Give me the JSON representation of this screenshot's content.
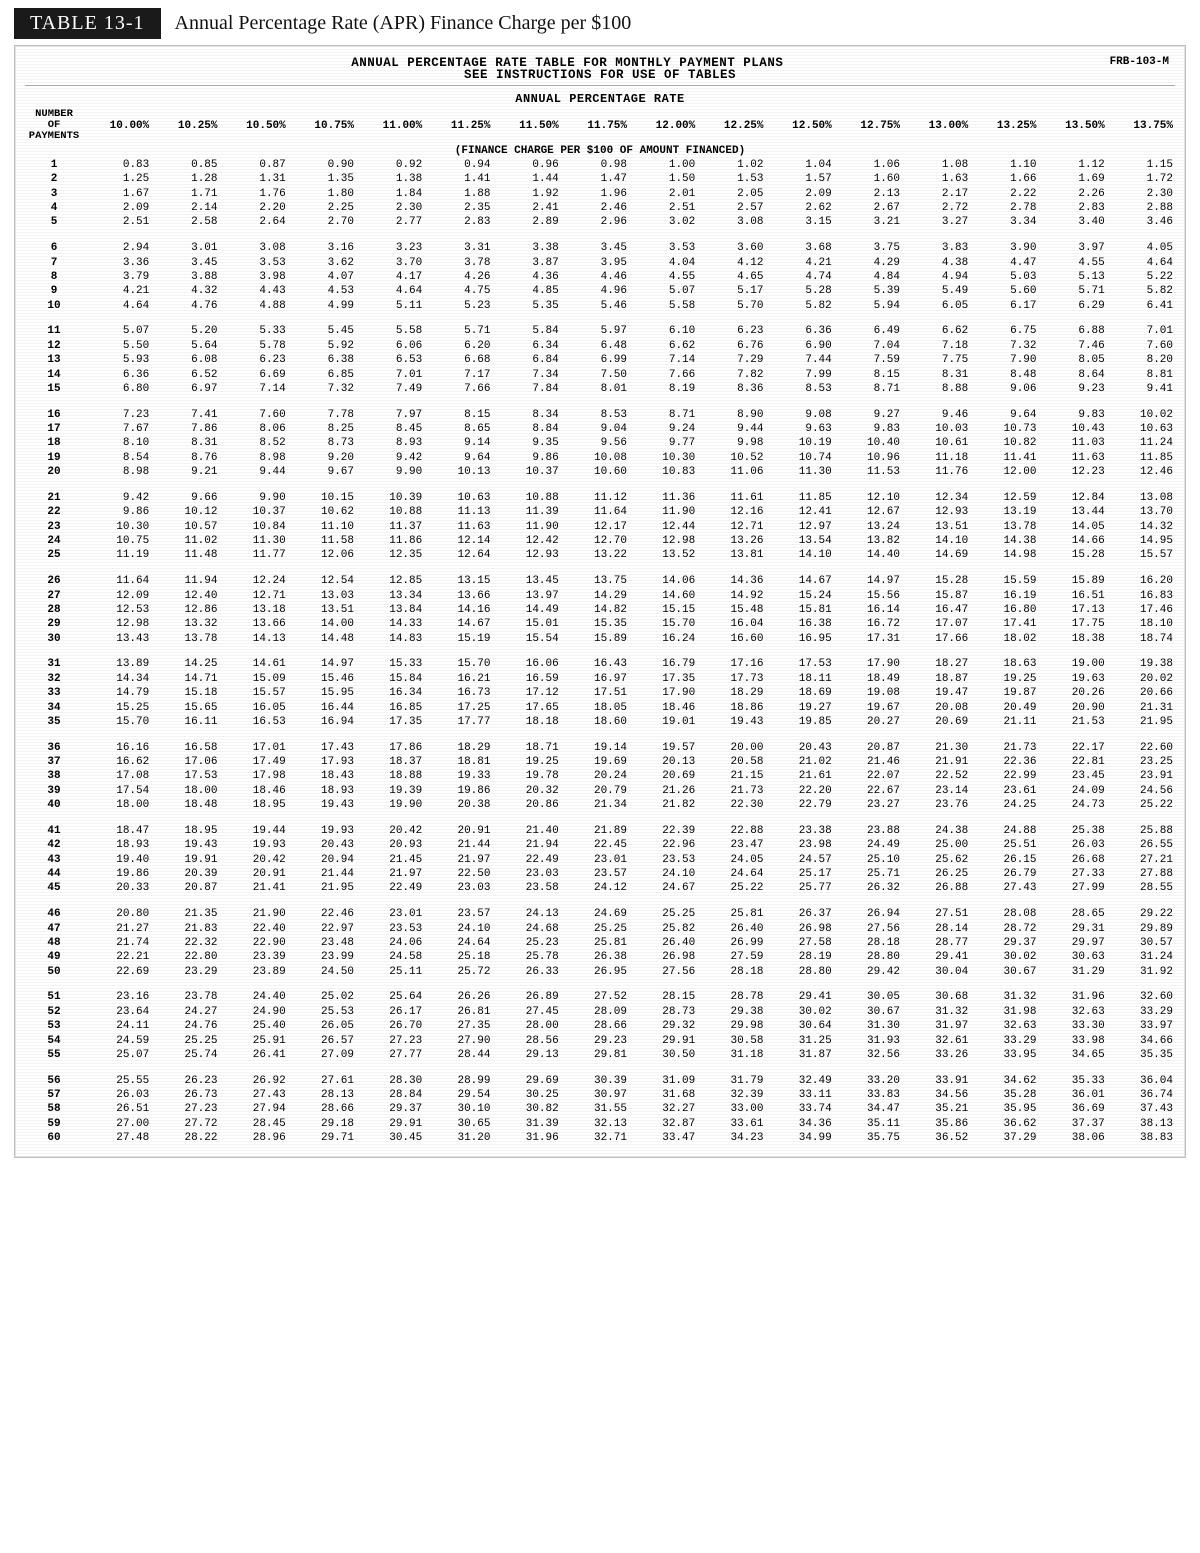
{
  "title_bar": {
    "tag": "TABLE 13-1",
    "text": "Annual Percentage Rate (APR) Finance Charge per $100"
  },
  "table_head": {
    "line1": "ANNUAL PERCENTAGE RATE TABLE FOR MONTHLY PAYMENT PLANS",
    "line2": "SEE INSTRUCTIONS FOR USE OF TABLES",
    "form_id": "FRB-103-M",
    "apr_title": "ANNUAL PERCENTAGE RATE",
    "row_header": "NUMBER\nOF\nPAYMENTS",
    "finance_note": "(FINANCE CHARGE PER $100 OF AMOUNT FINANCED)"
  },
  "rates": [
    "10.00%",
    "10.25%",
    "10.50%",
    "10.75%",
    "11.00%",
    "11.25%",
    "11.50%",
    "11.75%",
    "12.00%",
    "12.25%",
    "12.50%",
    "12.75%",
    "13.00%",
    "13.25%",
    "13.50%",
    "13.75%"
  ],
  "groups": 12,
  "colors": {
    "page_bg": "#ffffff",
    "ink": "#000000",
    "tag_bg": "#1a1a1a",
    "tag_fg": "#ffffff",
    "rule": "#aaaaaa"
  },
  "rows": [
    {
      "n": 1,
      "v": [
        "0.83",
        "0.85",
        "0.87",
        "0.90",
        "0.92",
        "0.94",
        "0.96",
        "0.98",
        "1.00",
        "1.02",
        "1.04",
        "1.06",
        "1.08",
        "1.10",
        "1.12",
        "1.15"
      ]
    },
    {
      "n": 2,
      "v": [
        "1.25",
        "1.28",
        "1.31",
        "1.35",
        "1.38",
        "1.41",
        "1.44",
        "1.47",
        "1.50",
        "1.53",
        "1.57",
        "1.60",
        "1.63",
        "1.66",
        "1.69",
        "1.72"
      ]
    },
    {
      "n": 3,
      "v": [
        "1.67",
        "1.71",
        "1.76",
        "1.80",
        "1.84",
        "1.88",
        "1.92",
        "1.96",
        "2.01",
        "2.05",
        "2.09",
        "2.13",
        "2.17",
        "2.22",
        "2.26",
        "2.30"
      ]
    },
    {
      "n": 4,
      "v": [
        "2.09",
        "2.14",
        "2.20",
        "2.25",
        "2.30",
        "2.35",
        "2.41",
        "2.46",
        "2.51",
        "2.57",
        "2.62",
        "2.67",
        "2.72",
        "2.78",
        "2.83",
        "2.88"
      ]
    },
    {
      "n": 5,
      "v": [
        "2.51",
        "2.58",
        "2.64",
        "2.70",
        "2.77",
        "2.83",
        "2.89",
        "2.96",
        "3.02",
        "3.08",
        "3.15",
        "3.21",
        "3.27",
        "3.34",
        "3.40",
        "3.46"
      ]
    },
    {
      "n": 6,
      "v": [
        "2.94",
        "3.01",
        "3.08",
        "3.16",
        "3.23",
        "3.31",
        "3.38",
        "3.45",
        "3.53",
        "3.60",
        "3.68",
        "3.75",
        "3.83",
        "3.90",
        "3.97",
        "4.05"
      ]
    },
    {
      "n": 7,
      "v": [
        "3.36",
        "3.45",
        "3.53",
        "3.62",
        "3.70",
        "3.78",
        "3.87",
        "3.95",
        "4.04",
        "4.12",
        "4.21",
        "4.29",
        "4.38",
        "4.47",
        "4.55",
        "4.64"
      ]
    },
    {
      "n": 8,
      "v": [
        "3.79",
        "3.88",
        "3.98",
        "4.07",
        "4.17",
        "4.26",
        "4.36",
        "4.46",
        "4.55",
        "4.65",
        "4.74",
        "4.84",
        "4.94",
        "5.03",
        "5.13",
        "5.22"
      ]
    },
    {
      "n": 9,
      "v": [
        "4.21",
        "4.32",
        "4.43",
        "4.53",
        "4.64",
        "4.75",
        "4.85",
        "4.96",
        "5.07",
        "5.17",
        "5.28",
        "5.39",
        "5.49",
        "5.60",
        "5.71",
        "5.82"
      ]
    },
    {
      "n": 10,
      "v": [
        "4.64",
        "4.76",
        "4.88",
        "4.99",
        "5.11",
        "5.23",
        "5.35",
        "5.46",
        "5.58",
        "5.70",
        "5.82",
        "5.94",
        "6.05",
        "6.17",
        "6.29",
        "6.41"
      ]
    },
    {
      "n": 11,
      "v": [
        "5.07",
        "5.20",
        "5.33",
        "5.45",
        "5.58",
        "5.71",
        "5.84",
        "5.97",
        "6.10",
        "6.23",
        "6.36",
        "6.49",
        "6.62",
        "6.75",
        "6.88",
        "7.01"
      ]
    },
    {
      "n": 12,
      "v": [
        "5.50",
        "5.64",
        "5.78",
        "5.92",
        "6.06",
        "6.20",
        "6.34",
        "6.48",
        "6.62",
        "6.76",
        "6.90",
        "7.04",
        "7.18",
        "7.32",
        "7.46",
        "7.60"
      ]
    },
    {
      "n": 13,
      "v": [
        "5.93",
        "6.08",
        "6.23",
        "6.38",
        "6.53",
        "6.68",
        "6.84",
        "6.99",
        "7.14",
        "7.29",
        "7.44",
        "7.59",
        "7.75",
        "7.90",
        "8.05",
        "8.20"
      ]
    },
    {
      "n": 14,
      "v": [
        "6.36",
        "6.52",
        "6.69",
        "6.85",
        "7.01",
        "7.17",
        "7.34",
        "7.50",
        "7.66",
        "7.82",
        "7.99",
        "8.15",
        "8.31",
        "8.48",
        "8.64",
        "8.81"
      ]
    },
    {
      "n": 15,
      "v": [
        "6.80",
        "6.97",
        "7.14",
        "7.32",
        "7.49",
        "7.66",
        "7.84",
        "8.01",
        "8.19",
        "8.36",
        "8.53",
        "8.71",
        "8.88",
        "9.06",
        "9.23",
        "9.41"
      ]
    },
    {
      "n": 16,
      "v": [
        "7.23",
        "7.41",
        "7.60",
        "7.78",
        "7.97",
        "8.15",
        "8.34",
        "8.53",
        "8.71",
        "8.90",
        "9.08",
        "9.27",
        "9.46",
        "9.64",
        "9.83",
        "10.02"
      ]
    },
    {
      "n": 17,
      "v": [
        "7.67",
        "7.86",
        "8.06",
        "8.25",
        "8.45",
        "8.65",
        "8.84",
        "9.04",
        "9.24",
        "9.44",
        "9.63",
        "9.83",
        "10.03",
        "10.73",
        "10.43",
        "10.63"
      ]
    },
    {
      "n": 18,
      "v": [
        "8.10",
        "8.31",
        "8.52",
        "8.73",
        "8.93",
        "9.14",
        "9.35",
        "9.56",
        "9.77",
        "9.98",
        "10.19",
        "10.40",
        "10.61",
        "10.82",
        "11.03",
        "11.24"
      ]
    },
    {
      "n": 19,
      "v": [
        "8.54",
        "8.76",
        "8.98",
        "9.20",
        "9.42",
        "9.64",
        "9.86",
        "10.08",
        "10.30",
        "10.52",
        "10.74",
        "10.96",
        "11.18",
        "11.41",
        "11.63",
        "11.85"
      ]
    },
    {
      "n": 20,
      "v": [
        "8.98",
        "9.21",
        "9.44",
        "9.67",
        "9.90",
        "10.13",
        "10.37",
        "10.60",
        "10.83",
        "11.06",
        "11.30",
        "11.53",
        "11.76",
        "12.00",
        "12.23",
        "12.46"
      ]
    },
    {
      "n": 21,
      "v": [
        "9.42",
        "9.66",
        "9.90",
        "10.15",
        "10.39",
        "10.63",
        "10.88",
        "11.12",
        "11.36",
        "11.61",
        "11.85",
        "12.10",
        "12.34",
        "12.59",
        "12.84",
        "13.08"
      ]
    },
    {
      "n": 22,
      "v": [
        "9.86",
        "10.12",
        "10.37",
        "10.62",
        "10.88",
        "11.13",
        "11.39",
        "11.64",
        "11.90",
        "12.16",
        "12.41",
        "12.67",
        "12.93",
        "13.19",
        "13.44",
        "13.70"
      ]
    },
    {
      "n": 23,
      "v": [
        "10.30",
        "10.57",
        "10.84",
        "11.10",
        "11.37",
        "11.63",
        "11.90",
        "12.17",
        "12.44",
        "12.71",
        "12.97",
        "13.24",
        "13.51",
        "13.78",
        "14.05",
        "14.32"
      ]
    },
    {
      "n": 24,
      "v": [
        "10.75",
        "11.02",
        "11.30",
        "11.58",
        "11.86",
        "12.14",
        "12.42",
        "12.70",
        "12.98",
        "13.26",
        "13.54",
        "13.82",
        "14.10",
        "14.38",
        "14.66",
        "14.95"
      ]
    },
    {
      "n": 25,
      "v": [
        "11.19",
        "11.48",
        "11.77",
        "12.06",
        "12.35",
        "12.64",
        "12.93",
        "13.22",
        "13.52",
        "13.81",
        "14.10",
        "14.40",
        "14.69",
        "14.98",
        "15.28",
        "15.57"
      ]
    },
    {
      "n": 26,
      "v": [
        "11.64",
        "11.94",
        "12.24",
        "12.54",
        "12.85",
        "13.15",
        "13.45",
        "13.75",
        "14.06",
        "14.36",
        "14.67",
        "14.97",
        "15.28",
        "15.59",
        "15.89",
        "16.20"
      ]
    },
    {
      "n": 27,
      "v": [
        "12.09",
        "12.40",
        "12.71",
        "13.03",
        "13.34",
        "13.66",
        "13.97",
        "14.29",
        "14.60",
        "14.92",
        "15.24",
        "15.56",
        "15.87",
        "16.19",
        "16.51",
        "16.83"
      ]
    },
    {
      "n": 28,
      "v": [
        "12.53",
        "12.86",
        "13.18",
        "13.51",
        "13.84",
        "14.16",
        "14.49",
        "14.82",
        "15.15",
        "15.48",
        "15.81",
        "16.14",
        "16.47",
        "16.80",
        "17.13",
        "17.46"
      ]
    },
    {
      "n": 29,
      "v": [
        "12.98",
        "13.32",
        "13.66",
        "14.00",
        "14.33",
        "14.67",
        "15.01",
        "15.35",
        "15.70",
        "16.04",
        "16.38",
        "16.72",
        "17.07",
        "17.41",
        "17.75",
        "18.10"
      ]
    },
    {
      "n": 30,
      "v": [
        "13.43",
        "13.78",
        "14.13",
        "14.48",
        "14.83",
        "15.19",
        "15.54",
        "15.89",
        "16.24",
        "16.60",
        "16.95",
        "17.31",
        "17.66",
        "18.02",
        "18.38",
        "18.74"
      ]
    },
    {
      "n": 31,
      "v": [
        "13.89",
        "14.25",
        "14.61",
        "14.97",
        "15.33",
        "15.70",
        "16.06",
        "16.43",
        "16.79",
        "17.16",
        "17.53",
        "17.90",
        "18.27",
        "18.63",
        "19.00",
        "19.38"
      ]
    },
    {
      "n": 32,
      "v": [
        "14.34",
        "14.71",
        "15.09",
        "15.46",
        "15.84",
        "16.21",
        "16.59",
        "16.97",
        "17.35",
        "17.73",
        "18.11",
        "18.49",
        "18.87",
        "19.25",
        "19.63",
        "20.02"
      ]
    },
    {
      "n": 33,
      "v": [
        "14.79",
        "15.18",
        "15.57",
        "15.95",
        "16.34",
        "16.73",
        "17.12",
        "17.51",
        "17.90",
        "18.29",
        "18.69",
        "19.08",
        "19.47",
        "19.87",
        "20.26",
        "20.66"
      ]
    },
    {
      "n": 34,
      "v": [
        "15.25",
        "15.65",
        "16.05",
        "16.44",
        "16.85",
        "17.25",
        "17.65",
        "18.05",
        "18.46",
        "18.86",
        "19.27",
        "19.67",
        "20.08",
        "20.49",
        "20.90",
        "21.31"
      ]
    },
    {
      "n": 35,
      "v": [
        "15.70",
        "16.11",
        "16.53",
        "16.94",
        "17.35",
        "17.77",
        "18.18",
        "18.60",
        "19.01",
        "19.43",
        "19.85",
        "20.27",
        "20.69",
        "21.11",
        "21.53",
        "21.95"
      ]
    },
    {
      "n": 36,
      "v": [
        "16.16",
        "16.58",
        "17.01",
        "17.43",
        "17.86",
        "18.29",
        "18.71",
        "19.14",
        "19.57",
        "20.00",
        "20.43",
        "20.87",
        "21.30",
        "21.73",
        "22.17",
        "22.60"
      ]
    },
    {
      "n": 37,
      "v": [
        "16.62",
        "17.06",
        "17.49",
        "17.93",
        "18.37",
        "18.81",
        "19.25",
        "19.69",
        "20.13",
        "20.58",
        "21.02",
        "21.46",
        "21.91",
        "22.36",
        "22.81",
        "23.25"
      ]
    },
    {
      "n": 38,
      "v": [
        "17.08",
        "17.53",
        "17.98",
        "18.43",
        "18.88",
        "19.33",
        "19.78",
        "20.24",
        "20.69",
        "21.15",
        "21.61",
        "22.07",
        "22.52",
        "22.99",
        "23.45",
        "23.91"
      ]
    },
    {
      "n": 39,
      "v": [
        "17.54",
        "18.00",
        "18.46",
        "18.93",
        "19.39",
        "19.86",
        "20.32",
        "20.79",
        "21.26",
        "21.73",
        "22.20",
        "22.67",
        "23.14",
        "23.61",
        "24.09",
        "24.56"
      ]
    },
    {
      "n": 40,
      "v": [
        "18.00",
        "18.48",
        "18.95",
        "19.43",
        "19.90",
        "20.38",
        "20.86",
        "21.34",
        "21.82",
        "22.30",
        "22.79",
        "23.27",
        "23.76",
        "24.25",
        "24.73",
        "25.22"
      ]
    },
    {
      "n": 41,
      "v": [
        "18.47",
        "18.95",
        "19.44",
        "19.93",
        "20.42",
        "20.91",
        "21.40",
        "21.89",
        "22.39",
        "22.88",
        "23.38",
        "23.88",
        "24.38",
        "24.88",
        "25.38",
        "25.88"
      ]
    },
    {
      "n": 42,
      "v": [
        "18.93",
        "19.43",
        "19.93",
        "20.43",
        "20.93",
        "21.44",
        "21.94",
        "22.45",
        "22.96",
        "23.47",
        "23.98",
        "24.49",
        "25.00",
        "25.51",
        "26.03",
        "26.55"
      ]
    },
    {
      "n": 43,
      "v": [
        "19.40",
        "19.91",
        "20.42",
        "20.94",
        "21.45",
        "21.97",
        "22.49",
        "23.01",
        "23.53",
        "24.05",
        "24.57",
        "25.10",
        "25.62",
        "26.15",
        "26.68",
        "27.21"
      ]
    },
    {
      "n": 44,
      "v": [
        "19.86",
        "20.39",
        "20.91",
        "21.44",
        "21.97",
        "22.50",
        "23.03",
        "23.57",
        "24.10",
        "24.64",
        "25.17",
        "25.71",
        "26.25",
        "26.79",
        "27.33",
        "27.88"
      ]
    },
    {
      "n": 45,
      "v": [
        "20.33",
        "20.87",
        "21.41",
        "21.95",
        "22.49",
        "23.03",
        "23.58",
        "24.12",
        "24.67",
        "25.22",
        "25.77",
        "26.32",
        "26.88",
        "27.43",
        "27.99",
        "28.55"
      ]
    },
    {
      "n": 46,
      "v": [
        "20.80",
        "21.35",
        "21.90",
        "22.46",
        "23.01",
        "23.57",
        "24.13",
        "24.69",
        "25.25",
        "25.81",
        "26.37",
        "26.94",
        "27.51",
        "28.08",
        "28.65",
        "29.22"
      ]
    },
    {
      "n": 47,
      "v": [
        "21.27",
        "21.83",
        "22.40",
        "22.97",
        "23.53",
        "24.10",
        "24.68",
        "25.25",
        "25.82",
        "26.40",
        "26.98",
        "27.56",
        "28.14",
        "28.72",
        "29.31",
        "29.89"
      ]
    },
    {
      "n": 48,
      "v": [
        "21.74",
        "22.32",
        "22.90",
        "23.48",
        "24.06",
        "24.64",
        "25.23",
        "25.81",
        "26.40",
        "26.99",
        "27.58",
        "28.18",
        "28.77",
        "29.37",
        "29.97",
        "30.57"
      ]
    },
    {
      "n": 49,
      "v": [
        "22.21",
        "22.80",
        "23.39",
        "23.99",
        "24.58",
        "25.18",
        "25.78",
        "26.38",
        "26.98",
        "27.59",
        "28.19",
        "28.80",
        "29.41",
        "30.02",
        "30.63",
        "31.24"
      ]
    },
    {
      "n": 50,
      "v": [
        "22.69",
        "23.29",
        "23.89",
        "24.50",
        "25.11",
        "25.72",
        "26.33",
        "26.95",
        "27.56",
        "28.18",
        "28.80",
        "29.42",
        "30.04",
        "30.67",
        "31.29",
        "31.92"
      ]
    },
    {
      "n": 51,
      "v": [
        "23.16",
        "23.78",
        "24.40",
        "25.02",
        "25.64",
        "26.26",
        "26.89",
        "27.52",
        "28.15",
        "28.78",
        "29.41",
        "30.05",
        "30.68",
        "31.32",
        "31.96",
        "32.60"
      ]
    },
    {
      "n": 52,
      "v": [
        "23.64",
        "24.27",
        "24.90",
        "25.53",
        "26.17",
        "26.81",
        "27.45",
        "28.09",
        "28.73",
        "29.38",
        "30.02",
        "30.67",
        "31.32",
        "31.98",
        "32.63",
        "33.29"
      ]
    },
    {
      "n": 53,
      "v": [
        "24.11",
        "24.76",
        "25.40",
        "26.05",
        "26.70",
        "27.35",
        "28.00",
        "28.66",
        "29.32",
        "29.98",
        "30.64",
        "31.30",
        "31.97",
        "32.63",
        "33.30",
        "33.97"
      ]
    },
    {
      "n": 54,
      "v": [
        "24.59",
        "25.25",
        "25.91",
        "26.57",
        "27.23",
        "27.90",
        "28.56",
        "29.23",
        "29.91",
        "30.58",
        "31.25",
        "31.93",
        "32.61",
        "33.29",
        "33.98",
        "34.66"
      ]
    },
    {
      "n": 55,
      "v": [
        "25.07",
        "25.74",
        "26.41",
        "27.09",
        "27.77",
        "28.44",
        "29.13",
        "29.81",
        "30.50",
        "31.18",
        "31.87",
        "32.56",
        "33.26",
        "33.95",
        "34.65",
        "35.35"
      ]
    },
    {
      "n": 56,
      "v": [
        "25.55",
        "26.23",
        "26.92",
        "27.61",
        "28.30",
        "28.99",
        "29.69",
        "30.39",
        "31.09",
        "31.79",
        "32.49",
        "33.20",
        "33.91",
        "34.62",
        "35.33",
        "36.04"
      ]
    },
    {
      "n": 57,
      "v": [
        "26.03",
        "26.73",
        "27.43",
        "28.13",
        "28.84",
        "29.54",
        "30.25",
        "30.97",
        "31.68",
        "32.39",
        "33.11",
        "33.83",
        "34.56",
        "35.28",
        "36.01",
        "36.74"
      ]
    },
    {
      "n": 58,
      "v": [
        "26.51",
        "27.23",
        "27.94",
        "28.66",
        "29.37",
        "30.10",
        "30.82",
        "31.55",
        "32.27",
        "33.00",
        "33.74",
        "34.47",
        "35.21",
        "35.95",
        "36.69",
        "37.43"
      ]
    },
    {
      "n": 59,
      "v": [
        "27.00",
        "27.72",
        "28.45",
        "29.18",
        "29.91",
        "30.65",
        "31.39",
        "32.13",
        "32.87",
        "33.61",
        "34.36",
        "35.11",
        "35.86",
        "36.62",
        "37.37",
        "38.13"
      ]
    },
    {
      "n": 60,
      "v": [
        "27.48",
        "28.22",
        "28.96",
        "29.71",
        "30.45",
        "31.20",
        "31.96",
        "32.71",
        "33.47",
        "34.23",
        "34.99",
        "35.75",
        "36.52",
        "37.29",
        "38.06",
        "38.83"
      ]
    }
  ]
}
